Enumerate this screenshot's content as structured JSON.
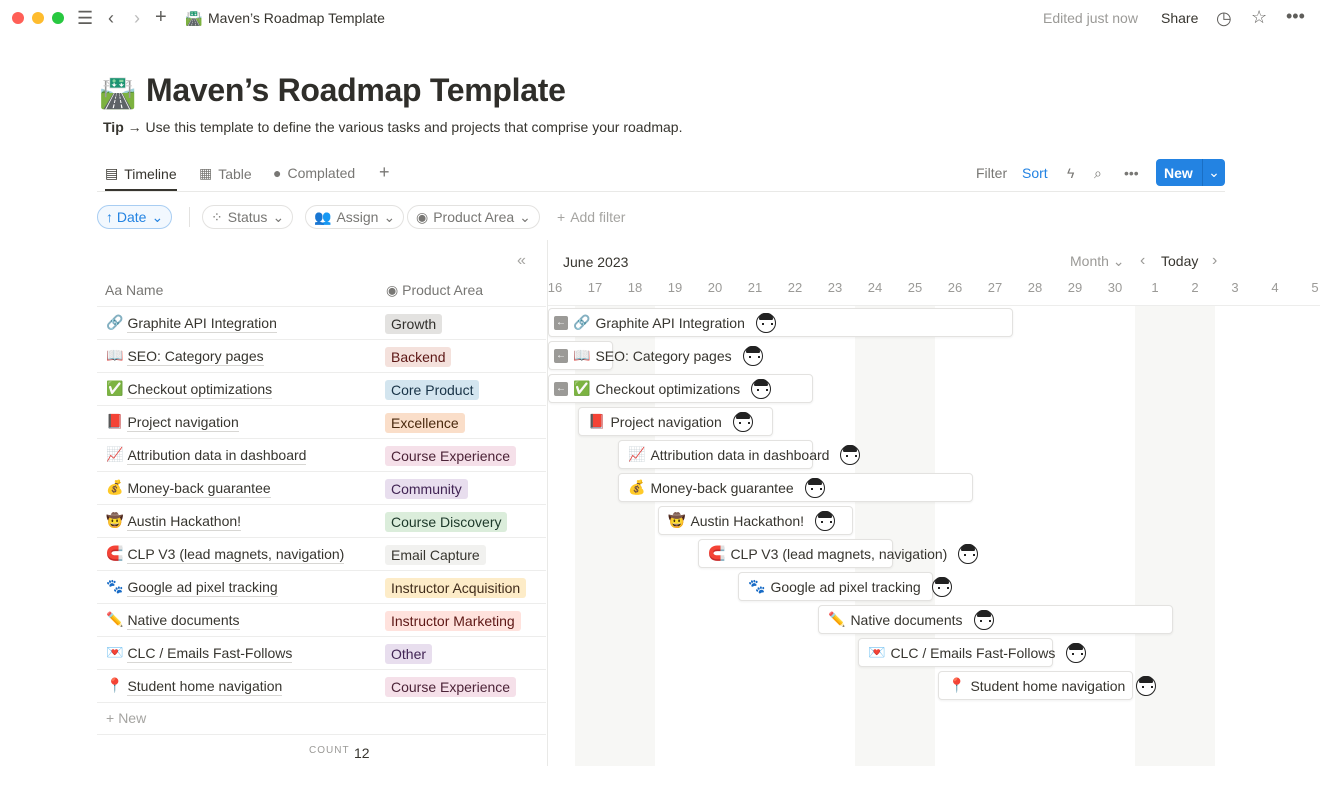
{
  "window": {
    "title": "Maven’s Roadmap Template",
    "edited": "Edited just now",
    "share": "Share"
  },
  "page": {
    "emoji": "🛣️",
    "title": "Maven’s Roadmap Template",
    "tip_label": "Tip",
    "tip_text": "→ Use this template to define the various tasks and projects that comprise your roadmap."
  },
  "tabs": [
    {
      "label": "Timeline",
      "icon": "timeline-icon",
      "active": true
    },
    {
      "label": "Table",
      "icon": "table-icon"
    },
    {
      "label": "Complated",
      "icon": "check-circle-icon"
    }
  ],
  "toolbar": {
    "filter": "Filter",
    "sort": "Sort",
    "new": "New"
  },
  "filters": {
    "date": "↑ Date",
    "status": "Status",
    "assign": "Assign",
    "product_area": "Product Area",
    "add_filter": "Add filter"
  },
  "table": {
    "name_header": "Name",
    "area_header": "Product Area",
    "new_label": "New",
    "count_label": "COUNT",
    "count": "12"
  },
  "timeline": {
    "month": "June 2023",
    "view": "Month",
    "today": "Today",
    "days": [
      "16",
      "17",
      "18",
      "19",
      "20",
      "21",
      "22",
      "23",
      "24",
      "25",
      "26",
      "27",
      "28",
      "29",
      "30",
      "1",
      "2",
      "3",
      "4",
      "5"
    ]
  },
  "colors": {
    "accent": "#2383e2"
  },
  "rows": [
    {
      "emoji": "🔗",
      "name": "Graphite API Integration",
      "area": "Growth",
      "tag_bg": "#e3e2e0",
      "tag_fg": "#32302c",
      "start": null,
      "end": "2023-06-27"
    },
    {
      "emoji": "📖",
      "name": "SEO: Category pages",
      "area": "Backend",
      "tag_bg": "#f4e1dc",
      "tag_fg": "#5d1715",
      "start": null,
      "end": "2023-06-17"
    },
    {
      "emoji": "✅",
      "name": "Checkout optimizations",
      "area": "Core Product",
      "tag_bg": "#d3e5ef",
      "tag_fg": "#183347",
      "start": null,
      "end": "2023-06-22"
    },
    {
      "emoji": "📕",
      "name": "Project navigation",
      "area": "Excellence",
      "tag_bg": "#fadec9",
      "tag_fg": "#49290e",
      "start": "2023-06-17",
      "end": "2023-06-21"
    },
    {
      "emoji": "📈",
      "name": "Attribution data in dashboard",
      "area": "Course Experience",
      "tag_bg": "#f5e0e9",
      "tag_fg": "#4c2337",
      "start": "2023-06-18",
      "end": "2023-06-22"
    },
    {
      "emoji": "💰",
      "name": "Money-back guarantee",
      "area": "Community",
      "tag_bg": "#e8deee",
      "tag_fg": "#412454",
      "start": "2023-06-18",
      "end": "2023-06-26"
    },
    {
      "emoji": "🤠",
      "name": "Austin Hackathon!",
      "area": "Course Discovery",
      "tag_bg": "#dbeddb",
      "tag_fg": "#1c3829",
      "start": "2023-06-19",
      "end": "2023-06-23"
    },
    {
      "emoji": "🧲",
      "name": "CLP V3 (lead magnets, navigation)",
      "area": "Email Capture",
      "tag_bg": "#f1f1ef",
      "tag_fg": "#37352f",
      "start": "2023-06-20",
      "end": "2023-06-24"
    },
    {
      "emoji": "🐾",
      "name": "Google ad pixel tracking",
      "area": "Instructor Acquisition",
      "tag_bg": "#fdecc8",
      "tag_fg": "#402c1b",
      "start": "2023-06-21",
      "end": "2023-06-25"
    },
    {
      "emoji": "✏️",
      "name": "Native documents",
      "area": "Instructor Marketing",
      "tag_bg": "#ffe2dd",
      "tag_fg": "#5d1715",
      "start": "2023-06-23",
      "end": "2023-07-01"
    },
    {
      "emoji": "💌",
      "name": "CLC / Emails Fast-Follows",
      "area": "Other",
      "tag_bg": "#e8deee",
      "tag_fg": "#412454",
      "start": "2023-06-24",
      "end": "2023-06-28"
    },
    {
      "emoji": "📍",
      "name": "Student home navigation",
      "area": "Course Experience",
      "tag_bg": "#f5e0e9",
      "tag_fg": "#4c2337",
      "start": "2023-06-26",
      "end": "2023-06-30"
    }
  ]
}
